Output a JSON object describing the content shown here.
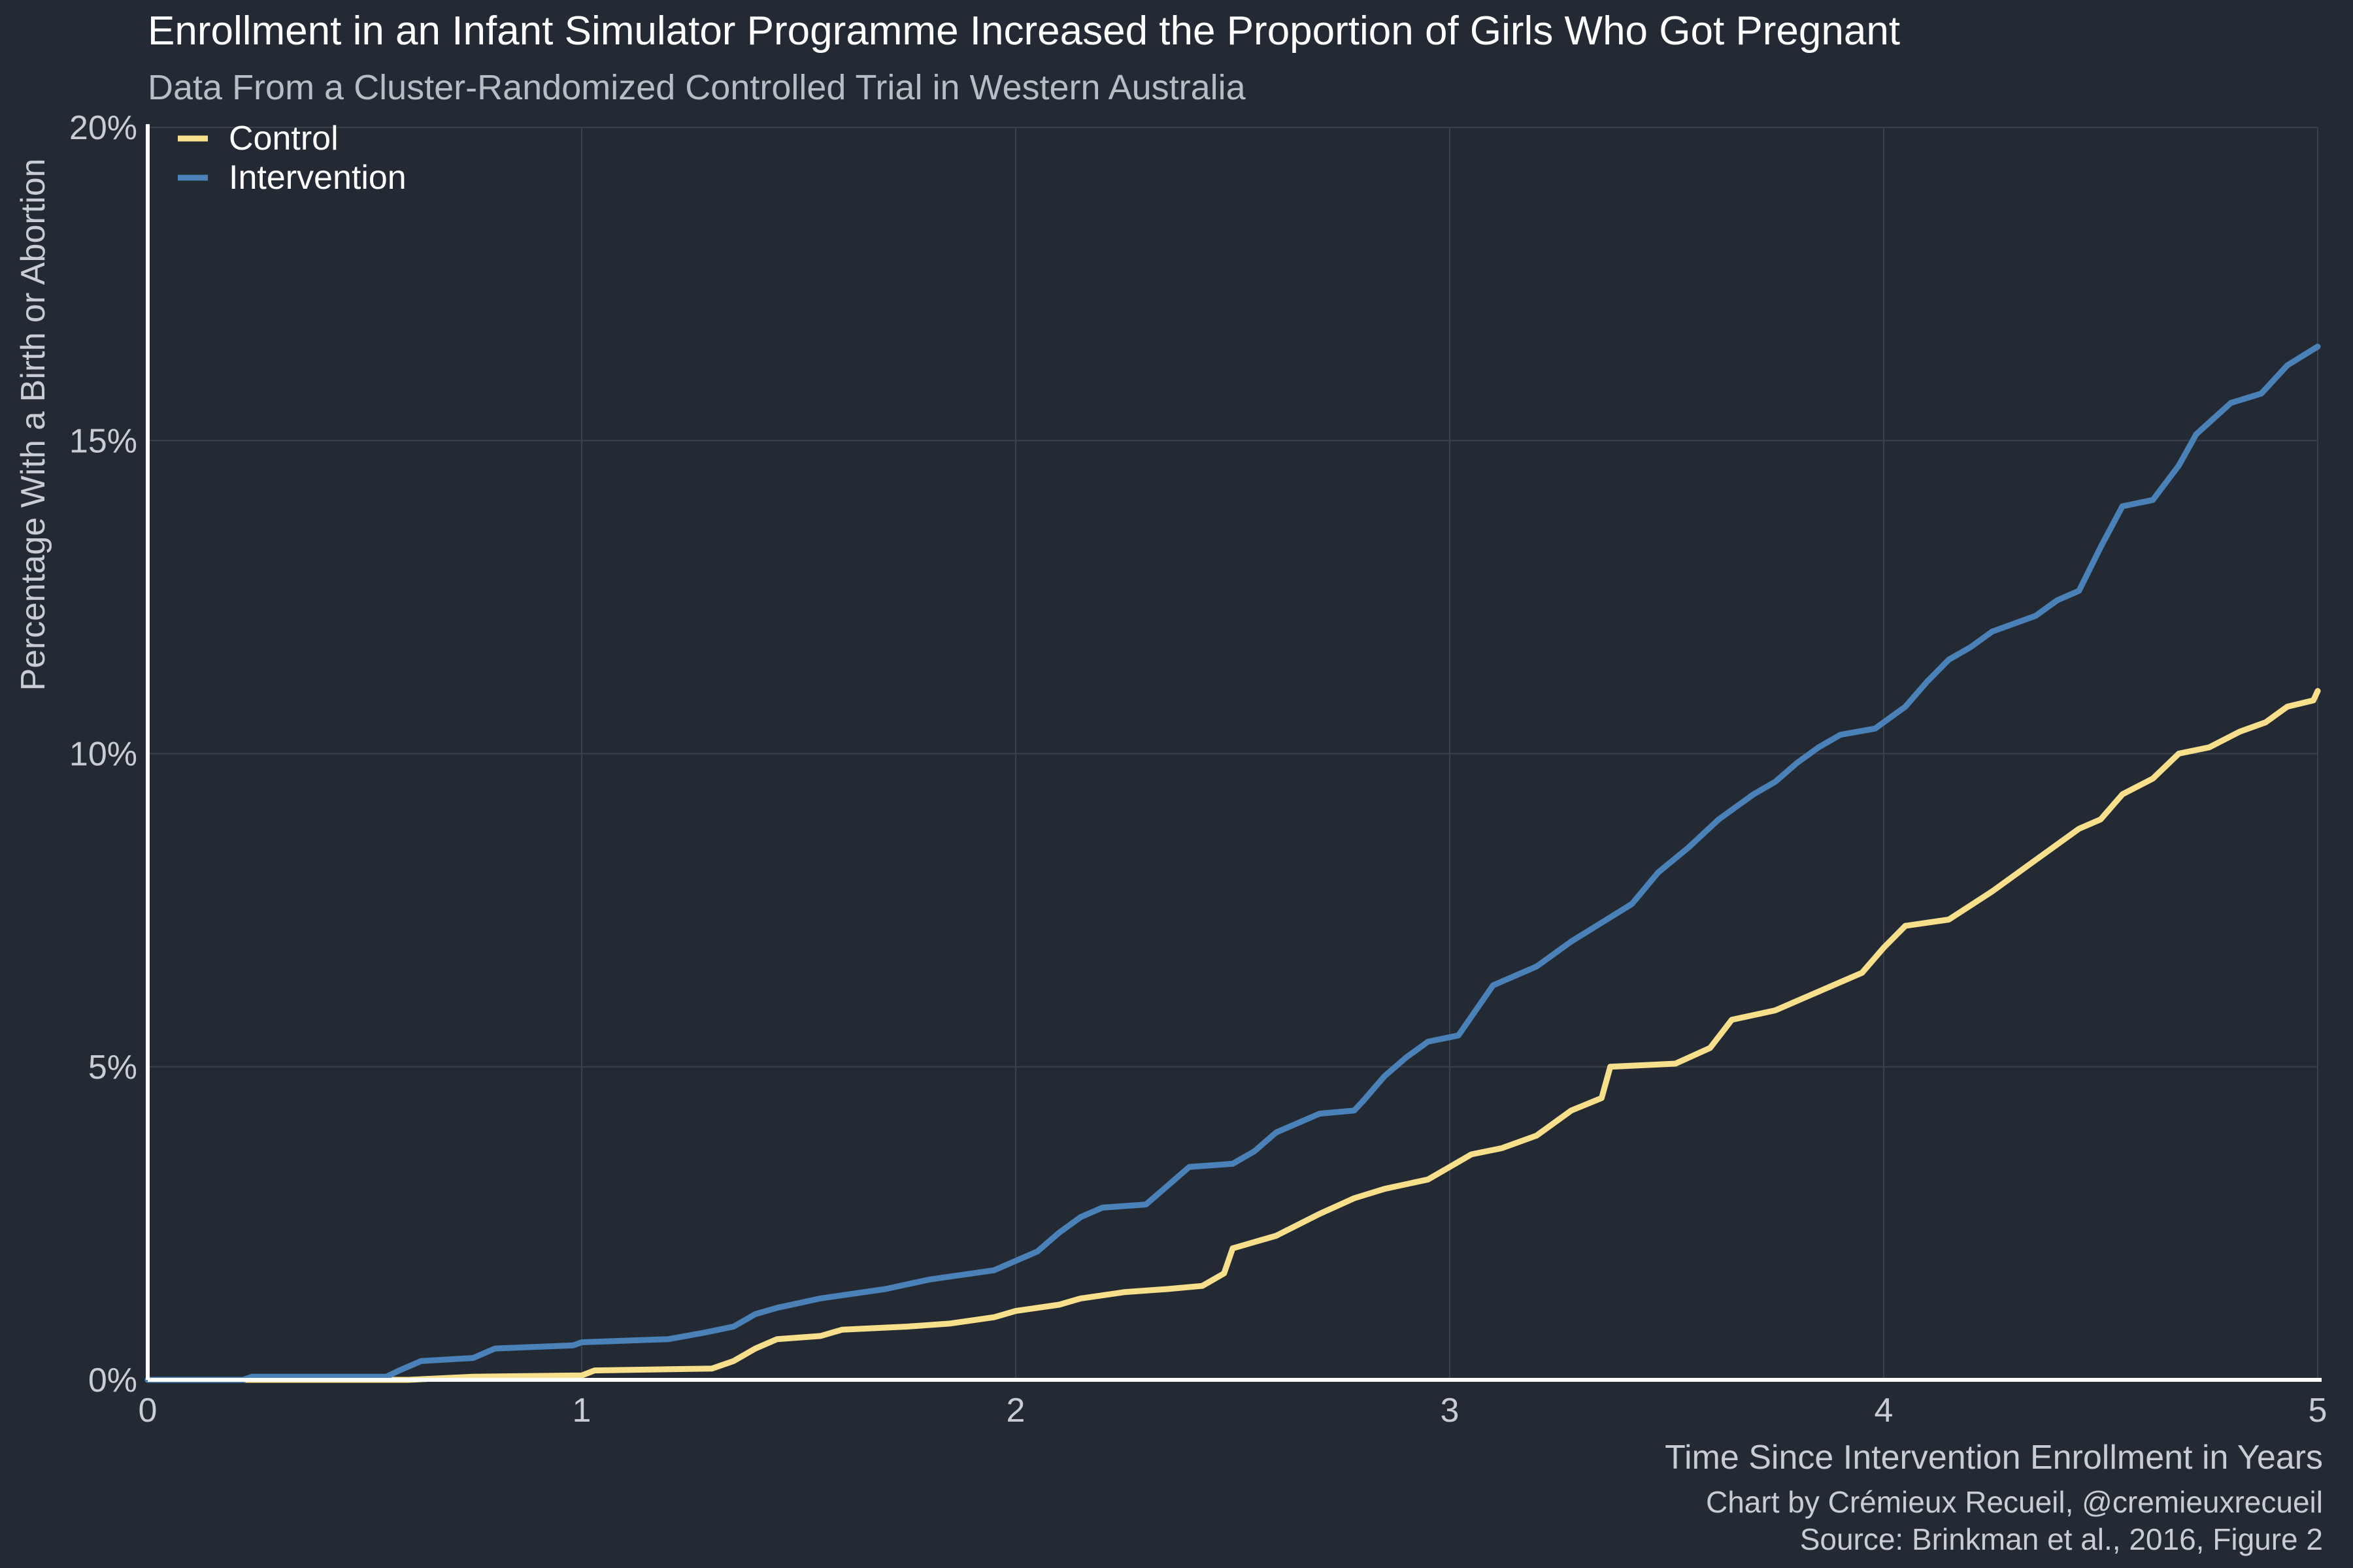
{
  "title": "Enrollment in an Infant Simulator Programme Increased the Proportion of Girls Who Got Pregnant",
  "subtitle": "Data From a Cluster-Randomized Controlled Trial in Western Australia",
  "caption_line1": "Chart by Crémieux Recueil, @cremieuxrecueil",
  "caption_line2": "Source: Brinkman et al., 2016, Figure 2",
  "colors": {
    "background": "#232a33",
    "grid": "#3a414b",
    "axis": "#ffffff",
    "control": "#f7df8c",
    "intervention": "#4a81b8"
  },
  "chart_data": {
    "type": "line",
    "xlabel": "Time Since Intervention Enrollment in Years",
    "ylabel": "Percentage With a Birth or Abortion",
    "xlim": [
      0,
      5
    ],
    "ylim": [
      0,
      20
    ],
    "x_ticks": [
      0,
      1,
      2,
      3,
      4,
      5
    ],
    "x_tick_labels": [
      "0",
      "1",
      "2",
      "3",
      "4",
      "5"
    ],
    "y_ticks": [
      0,
      5,
      10,
      15,
      20
    ],
    "y_tick_labels": [
      "0%",
      "5%",
      "10%",
      "15%",
      "20%"
    ],
    "grid": true,
    "legend_position": "top-left",
    "series": [
      {
        "name": "Control",
        "color": "#f7df8c",
        "points": [
          [
            0,
            0
          ],
          [
            0.6,
            0
          ],
          [
            0.75,
            0.05
          ],
          [
            1.0,
            0.07
          ],
          [
            1.03,
            0.15
          ],
          [
            1.3,
            0.18
          ],
          [
            1.35,
            0.3
          ],
          [
            1.4,
            0.5
          ],
          [
            1.45,
            0.65
          ],
          [
            1.55,
            0.7
          ],
          [
            1.6,
            0.8
          ],
          [
            1.75,
            0.85
          ],
          [
            1.85,
            0.9
          ],
          [
            1.95,
            1.0
          ],
          [
            2.0,
            1.1
          ],
          [
            2.1,
            1.2
          ],
          [
            2.15,
            1.3
          ],
          [
            2.25,
            1.4
          ],
          [
            2.35,
            1.45
          ],
          [
            2.43,
            1.5
          ],
          [
            2.48,
            1.7
          ],
          [
            2.5,
            2.1
          ],
          [
            2.55,
            2.2
          ],
          [
            2.6,
            2.3
          ],
          [
            2.7,
            2.65
          ],
          [
            2.78,
            2.9
          ],
          [
            2.85,
            3.05
          ],
          [
            2.95,
            3.2
          ],
          [
            3.0,
            3.4
          ],
          [
            3.05,
            3.6
          ],
          [
            3.12,
            3.7
          ],
          [
            3.2,
            3.9
          ],
          [
            3.28,
            4.3
          ],
          [
            3.35,
            4.5
          ],
          [
            3.37,
            5.0
          ],
          [
            3.52,
            5.05
          ],
          [
            3.6,
            5.3
          ],
          [
            3.65,
            5.75
          ],
          [
            3.75,
            5.9
          ],
          [
            3.85,
            6.2
          ],
          [
            3.95,
            6.5
          ],
          [
            4.0,
            6.9
          ],
          [
            4.05,
            7.25
          ],
          [
            4.15,
            7.35
          ],
          [
            4.25,
            7.8
          ],
          [
            4.35,
            8.3
          ],
          [
            4.45,
            8.8
          ],
          [
            4.5,
            8.95
          ],
          [
            4.55,
            9.35
          ],
          [
            4.62,
            9.6
          ],
          [
            4.68,
            10.0
          ],
          [
            4.75,
            10.1
          ],
          [
            4.82,
            10.35
          ],
          [
            4.88,
            10.5
          ],
          [
            4.93,
            10.75
          ],
          [
            4.99,
            10.85
          ],
          [
            5.0,
            11.0
          ]
        ]
      },
      {
        "name": "Intervention",
        "color": "#4a81b8",
        "points": [
          [
            0,
            0
          ],
          [
            0.22,
            0
          ],
          [
            0.24,
            0.05
          ],
          [
            0.55,
            0.05
          ],
          [
            0.58,
            0.15
          ],
          [
            0.63,
            0.3
          ],
          [
            0.75,
            0.35
          ],
          [
            0.8,
            0.5
          ],
          [
            0.98,
            0.55
          ],
          [
            1.0,
            0.6
          ],
          [
            1.2,
            0.65
          ],
          [
            1.28,
            0.75
          ],
          [
            1.35,
            0.85
          ],
          [
            1.4,
            1.05
          ],
          [
            1.45,
            1.15
          ],
          [
            1.55,
            1.3
          ],
          [
            1.7,
            1.45
          ],
          [
            1.8,
            1.6
          ],
          [
            1.95,
            1.75
          ],
          [
            2.0,
            1.9
          ],
          [
            2.05,
            2.05
          ],
          [
            2.1,
            2.35
          ],
          [
            2.15,
            2.6
          ],
          [
            2.2,
            2.75
          ],
          [
            2.3,
            2.8
          ],
          [
            2.35,
            3.1
          ],
          [
            2.4,
            3.4
          ],
          [
            2.5,
            3.45
          ],
          [
            2.55,
            3.65
          ],
          [
            2.6,
            3.95
          ],
          [
            2.7,
            4.25
          ],
          [
            2.78,
            4.3
          ],
          [
            2.8,
            4.45
          ],
          [
            2.85,
            4.85
          ],
          [
            2.9,
            5.15
          ],
          [
            2.95,
            5.4
          ],
          [
            3.02,
            5.5
          ],
          [
            3.05,
            5.8
          ],
          [
            3.1,
            6.3
          ],
          [
            3.2,
            6.6
          ],
          [
            3.28,
            7.0
          ],
          [
            3.35,
            7.3
          ],
          [
            3.42,
            7.6
          ],
          [
            3.48,
            8.1
          ],
          [
            3.55,
            8.5
          ],
          [
            3.62,
            8.95
          ],
          [
            3.7,
            9.35
          ],
          [
            3.75,
            9.55
          ],
          [
            3.8,
            9.85
          ],
          [
            3.85,
            10.1
          ],
          [
            3.9,
            10.3
          ],
          [
            3.98,
            10.4
          ],
          [
            4.05,
            10.75
          ],
          [
            4.1,
            11.15
          ],
          [
            4.15,
            11.5
          ],
          [
            4.2,
            11.7
          ],
          [
            4.25,
            11.95
          ],
          [
            4.35,
            12.2
          ],
          [
            4.4,
            12.45
          ],
          [
            4.45,
            12.6
          ],
          [
            4.5,
            13.3
          ],
          [
            4.55,
            13.95
          ],
          [
            4.62,
            14.05
          ],
          [
            4.68,
            14.6
          ],
          [
            4.72,
            15.1
          ],
          [
            4.8,
            15.6
          ],
          [
            4.87,
            15.75
          ],
          [
            4.93,
            16.2
          ],
          [
            5.0,
            16.5
          ]
        ]
      }
    ]
  }
}
